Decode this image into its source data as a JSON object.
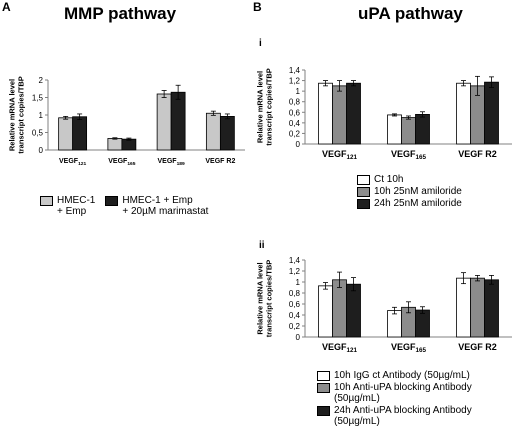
{
  "panels": {
    "a": {
      "letter": "A",
      "title": "MMP pathway"
    },
    "b": {
      "letter": "B",
      "title": "uPA pathway",
      "sub_i": "i",
      "sub_ii": "ii"
    }
  },
  "colors": {
    "light": "#c8c8c8",
    "mid": "#8c8c8c",
    "dark": "#1e1e1e",
    "white": "#ffffff",
    "axis": "#808080"
  },
  "chart_data": [
    {
      "id": "mmp",
      "type": "bar",
      "ylabel": "Relative mRNA level transcript copies/TBP",
      "ylim": [
        0,
        2
      ],
      "yticks": [
        "0",
        "0,5",
        "1",
        "1,5",
        "2"
      ],
      "categories": [
        {
          "base": "VEGF",
          "sub": "121"
        },
        {
          "base": "VEGF",
          "sub": "165"
        },
        {
          "base": "VEGF",
          "sub": "189"
        },
        {
          "base": "VEGF R2",
          "sub": ""
        }
      ],
      "series": [
        {
          "name": "HMEC-1 + Emp",
          "color": "#c8c8c8",
          "values": [
            0.92,
            0.33,
            1.6,
            1.05
          ],
          "errors": [
            0.04,
            0.02,
            0.1,
            0.06
          ]
        },
        {
          "name": "HMEC-1 + Emp + 20µM marimastat",
          "color": "#1e1e1e",
          "values": [
            0.95,
            0.31,
            1.65,
            0.96
          ],
          "errors": [
            0.08,
            0.03,
            0.2,
            0.07
          ]
        }
      ],
      "legend": [
        {
          "lines": [
            "HMEC-1",
            "+ Emp"
          ],
          "color": "#c8c8c8"
        },
        {
          "lines": [
            "HMEC-1 + Emp",
            "+ 20µM marimastat"
          ],
          "color": "#1e1e1e"
        }
      ]
    },
    {
      "id": "upa-i",
      "type": "bar",
      "ylabel": "Relative mRNA level transcript copies/TBP",
      "ylim": [
        0,
        1.4
      ],
      "yticks": [
        "0",
        "0,2",
        "0,4",
        "0,6",
        "0,8",
        "1",
        "1,2",
        "1,4"
      ],
      "categories": [
        {
          "base": "VEGF",
          "sub": "121"
        },
        {
          "base": "VEGF",
          "sub": "165"
        },
        {
          "base": "VEGF R2",
          "sub": ""
        }
      ],
      "series": [
        {
          "name": "Ct 10h",
          "color": "#ffffff",
          "values": [
            1.15,
            0.55,
            1.15
          ],
          "errors": [
            0.05,
            0.02,
            0.05
          ]
        },
        {
          "name": "10h 25nM amiloride",
          "color": "#8c8c8c",
          "values": [
            1.1,
            0.5,
            1.1
          ],
          "errors": [
            0.1,
            0.03,
            0.18
          ]
        },
        {
          "name": "24h 25nM amiloride",
          "color": "#1e1e1e",
          "values": [
            1.15,
            0.56,
            1.17
          ],
          "errors": [
            0.05,
            0.05,
            0.1
          ]
        }
      ]
    },
    {
      "id": "upa-ii",
      "type": "bar",
      "ylabel": "Relative mRNA level transcript copies/TBP",
      "ylim": [
        0,
        1.4
      ],
      "yticks": [
        "0",
        "0,2",
        "0,4",
        "0,6",
        "0,8",
        "1",
        "1,2",
        "1,4"
      ],
      "categories": [
        {
          "base": "VEGF",
          "sub": "121"
        },
        {
          "base": "VEGF",
          "sub": "165"
        },
        {
          "base": "VEGF R2",
          "sub": ""
        }
      ],
      "series": [
        {
          "name": "10h IgG ct Antibody (50µg/mL)",
          "color": "#ffffff",
          "values": [
            0.93,
            0.48,
            1.07
          ],
          "errors": [
            0.06,
            0.06,
            0.1
          ]
        },
        {
          "name": "10h Anti-uPA blocking Antibody (50µg/mL)",
          "color": "#8c8c8c",
          "values": [
            1.04,
            0.54,
            1.07
          ],
          "errors": [
            0.14,
            0.1,
            0.05
          ]
        },
        {
          "name": "24h Anti-uPA blocking Antibody (50µg/mL)",
          "color": "#1e1e1e",
          "values": [
            0.96,
            0.49,
            1.04
          ],
          "errors": [
            0.12,
            0.06,
            0.08
          ]
        }
      ]
    }
  ]
}
